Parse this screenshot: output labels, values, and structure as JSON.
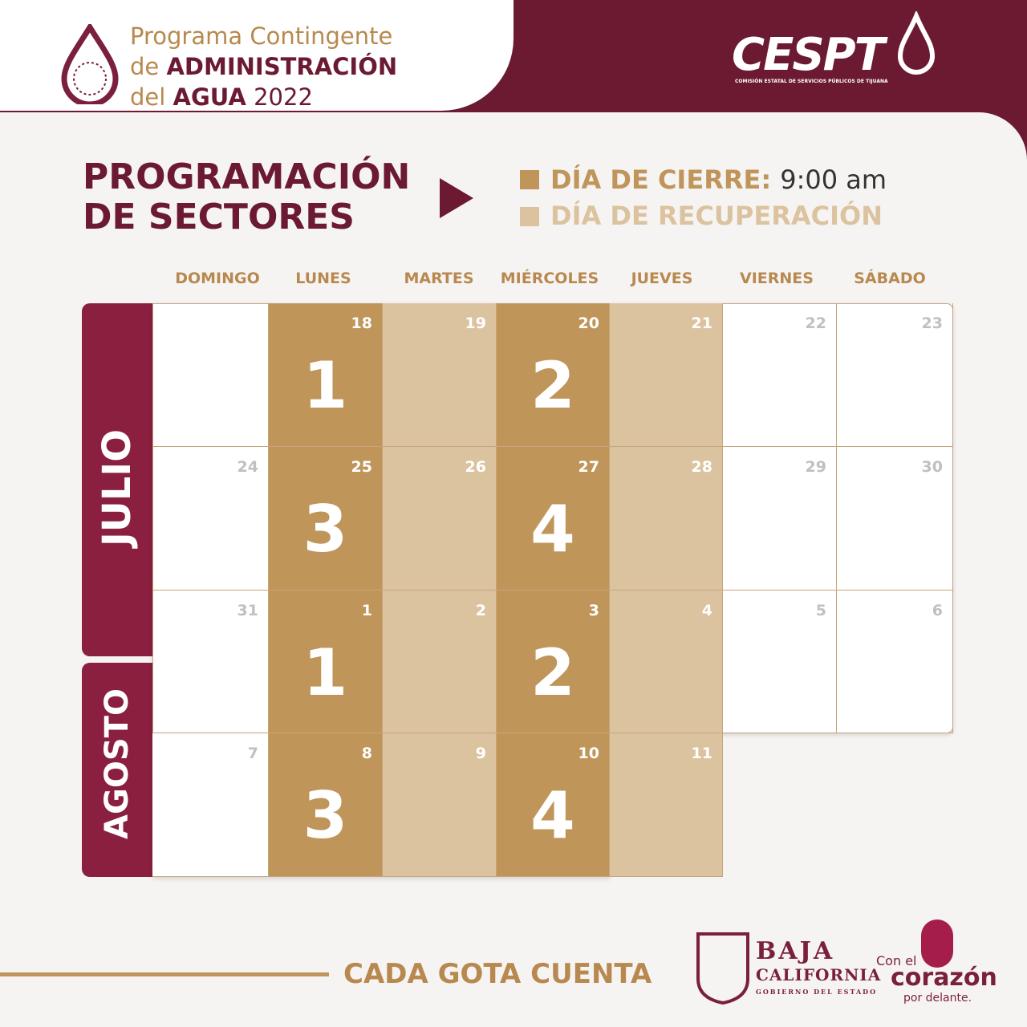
{
  "header": {
    "line1": "Programa Contingente",
    "line2_light": "de",
    "line2_bold": "ADMINISTRACIÓN",
    "line3_light": "del",
    "line3_bold": "AGUA",
    "line3_year": "2022"
  },
  "logo": {
    "name": "CESPT",
    "subtitle": "COMISIÓN ESTATAL DE SERVICIOS PÚBLICOS DE TIJUANA"
  },
  "section": {
    "title_line1": "PROGRAMACIÓN",
    "title_line2": "DE SECTORES"
  },
  "legend": {
    "closing": "DÍA DE CIERRE:",
    "closing_time": "9:00 am",
    "recovery": "DÍA DE RECUPERACIÓN"
  },
  "calendar": {
    "weekdays": [
      "DOMINGO",
      "LUNES",
      "MARTES",
      "MIÉRCOLES",
      "JUEVES",
      "VIERNES",
      "SÁBADO"
    ],
    "months": [
      {
        "name": "JULIO"
      },
      {
        "name": "AGOSTO"
      }
    ],
    "weeks": [
      {
        "days": [
          null,
          18,
          19,
          20,
          21,
          22,
          23
        ],
        "sectors": [
          null,
          1,
          null,
          2,
          null,
          null,
          null
        ]
      },
      {
        "days": [
          24,
          25,
          26,
          27,
          28,
          29,
          30
        ],
        "sectors": [
          null,
          3,
          null,
          4,
          null,
          null,
          null
        ]
      },
      {
        "days": [
          31,
          1,
          2,
          3,
          4,
          5,
          6
        ],
        "sectors": [
          null,
          1,
          null,
          2,
          null,
          null,
          null
        ]
      },
      {
        "days": [
          7,
          8,
          9,
          10,
          11
        ],
        "sectors": [
          null,
          3,
          null,
          4,
          null
        ]
      }
    ]
  },
  "footer": {
    "slogan": "CADA GOTA CUENTA",
    "state_line1": "BAJA",
    "state_line2": "CALIFORNIA",
    "state_line3": "GOBIERNO DEL ESTADO",
    "motto1": "Con el",
    "motto2": "corazón",
    "motto3": "por delante."
  }
}
